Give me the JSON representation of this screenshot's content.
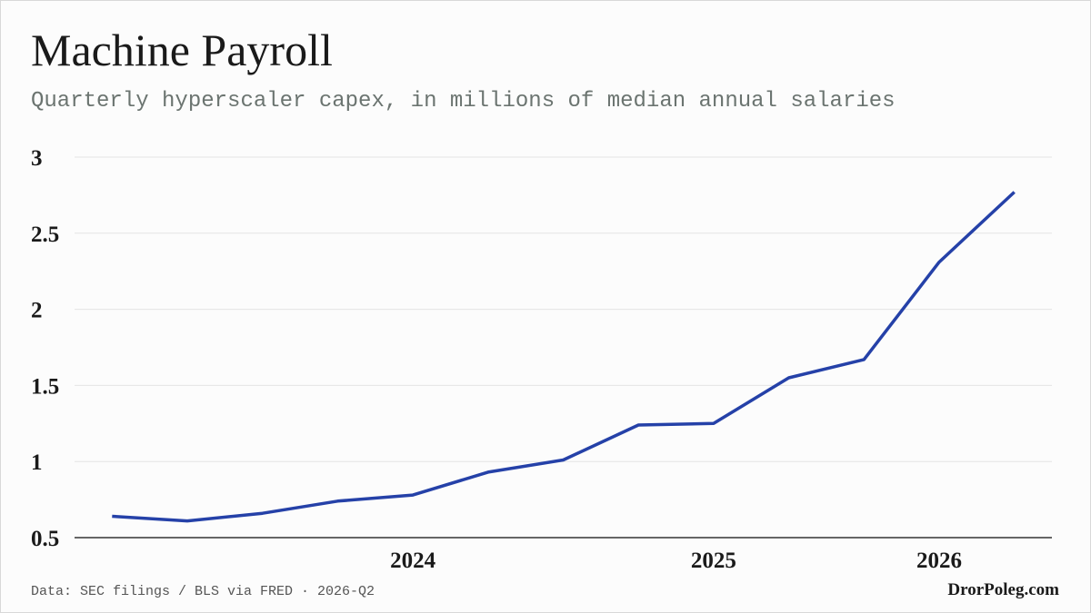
{
  "chart_data": {
    "type": "line",
    "title": "Machine Payroll",
    "subtitle": "Quarterly hyperscaler capex, in millions of median annual salaries",
    "source": "Data: SEC filings / BLS via FRED · 2026-Q2",
    "credit": "DrorPoleg.com",
    "categories": [
      null,
      null,
      null,
      null,
      "2024",
      null,
      null,
      null,
      "2025",
      null,
      null,
      "2026",
      null
    ],
    "series": [
      {
        "color": "#2541a8",
        "values": [
          0.64,
          0.61,
          0.66,
          0.74,
          0.78,
          0.93,
          1.01,
          1.24,
          1.25,
          1.55,
          1.67,
          2.31,
          2.77
        ]
      }
    ],
    "ylim": [
      0.5,
      3
    ],
    "yticks": [
      0.5,
      1,
      1.5,
      2,
      2.5,
      3
    ],
    "grid": true
  }
}
